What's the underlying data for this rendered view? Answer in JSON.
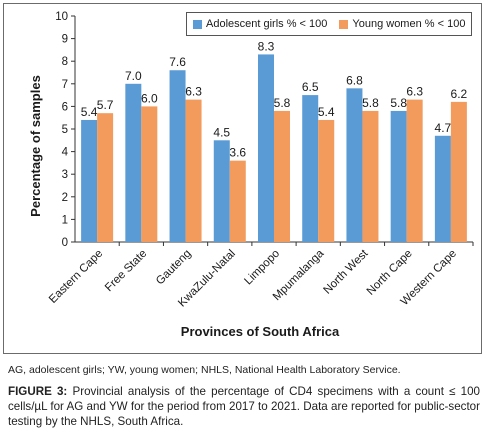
{
  "chart_data": {
    "type": "bar",
    "categories": [
      "Eastern Cape",
      "Free State",
      "Gauteng",
      "KwaZulu-Natal",
      "Limpopo",
      "Mpumalanga",
      "North West",
      "North Cape",
      "Western Cape"
    ],
    "series": [
      {
        "name": "Adolescent girls % < 100",
        "values": [
          5.4,
          7.0,
          7.6,
          4.5,
          8.3,
          6.5,
          6.8,
          5.8,
          4.7
        ],
        "labels": [
          "5.4",
          "7.0",
          "7.6",
          "4.5",
          "8.3",
          "6.5",
          "6.8",
          "5.8",
          "4.7"
        ],
        "color": "#5b9bd5"
      },
      {
        "name": "Young women % < 100",
        "values": [
          5.7,
          6.0,
          6.3,
          3.6,
          5.8,
          5.4,
          5.8,
          6.3,
          6.2
        ],
        "labels": [
          "5.7",
          "6.0",
          "6.3",
          "3.6",
          "5.8",
          "5.4",
          "5.8",
          "6.3",
          "6.2"
        ],
        "color": "#f29b5c"
      }
    ],
    "xlabel": "Provinces of South Africa",
    "ylabel": "Percentage of samples",
    "ylim": [
      0,
      10
    ],
    "yticks": [
      0,
      1,
      2,
      3,
      4,
      5,
      6,
      7,
      8,
      9,
      10
    ],
    "grid": false,
    "legend_position": "top"
  },
  "footnote": "AG, adolescent girls; YW, young women; NHLS, National Health Laboratory Service.",
  "caption": {
    "label": "FIGURE 3:",
    "text": " Provincial analysis of the percentage of CD4 specimens with a count ≤ 100 cells/µL for AG and YW for the period from 2017 to 2021. Data are reported for public-sector testing by the NHLS, South Africa."
  }
}
